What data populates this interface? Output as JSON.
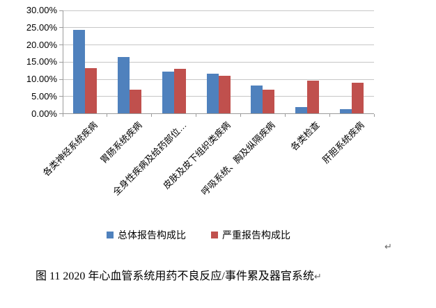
{
  "chart_data": {
    "type": "bar",
    "title": "",
    "categories": [
      "各类神经系统疾病",
      "胃肠系统疾病",
      "全身性疾病及给药部位…",
      "皮肤及皮下组织类疾病",
      "呼吸系统、胸及纵隔疾病",
      "各类检查",
      "肝胆系统疾病"
    ],
    "series": [
      {
        "name": "总体报告构成比",
        "color": "#4F81BD",
        "values": [
          24.4,
          16.5,
          12.2,
          11.6,
          8.2,
          2.0,
          1.4
        ]
      },
      {
        "name": "严重报告构成比",
        "color": "#C0504D",
        "values": [
          13.3,
          7.0,
          13.0,
          11.0,
          7.0,
          9.6,
          8.9
        ]
      }
    ],
    "xlabel": "",
    "ylabel": "",
    "ylim": [
      0,
      30
    ],
    "ytick_values": [
      0,
      5,
      10,
      15,
      20,
      25,
      30
    ],
    "ytick_labels": [
      "0.00%",
      "5.00%",
      "10.00%",
      "15.00%",
      "20.00%",
      "25.00%",
      "30.00%"
    ],
    "grid": "horizontal",
    "legend_position": "bottom",
    "colors": {
      "gridline": "#c6c6c6",
      "axis": "#9b9b9b",
      "text": "#000000",
      "background": "#ffffff"
    }
  },
  "legend": {
    "items": [
      {
        "label": "总体报告构成比",
        "color": "#4F81BD"
      },
      {
        "label": "严重报告构成比",
        "color": "#C0504D"
      }
    ]
  },
  "caption": {
    "text": "图 11  2020 年心血管系统用药不良反应/事件累及器官系统",
    "return_mark": "↵"
  },
  "floating_return_mark": "↵"
}
